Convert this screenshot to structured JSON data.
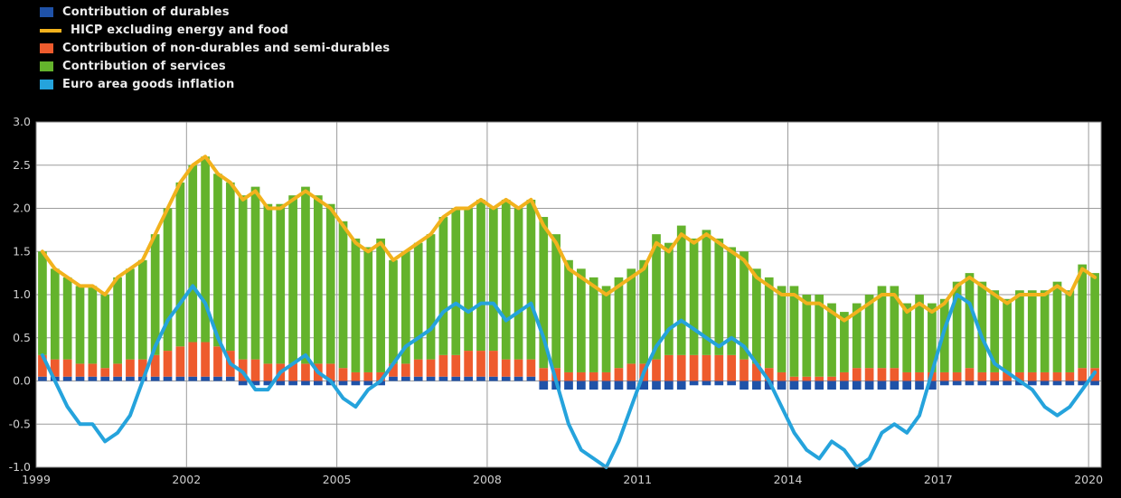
{
  "figure": {
    "background": "#000000",
    "plot_background": "#ffffff",
    "grid_color": "#9b9b9b",
    "axis_text_color": "#cfcfcf"
  },
  "legend": {
    "position": "top-left",
    "items": [
      {
        "label": "Contribution of durables",
        "color": "#1f52a8",
        "swatch": "square"
      },
      {
        "label": "HICP excluding energy and food",
        "color": "#f2b21d",
        "swatch": "line"
      },
      {
        "label": "Contribution of non-durables and semi-durables",
        "color": "#ee5b2d",
        "swatch": "square"
      },
      {
        "label": "Contribution of services",
        "color": "#64b32c",
        "swatch": "square"
      },
      {
        "label": "Euro area goods inflation",
        "color": "#25a3dc",
        "swatch": "square"
      }
    ]
  },
  "chart_data": {
    "type": "bar",
    "subtype": "stacked bars with line overlays",
    "title": "",
    "xlabel": "",
    "ylabel": "",
    "stacked": true,
    "grid": true,
    "legend_position": "top-left",
    "x0": 1999.0,
    "dx": 0.25,
    "xlim": [
      1999.0,
      2020.25
    ],
    "ylim": [
      -1.0,
      3.0
    ],
    "x_tick_values": [
      1999,
      2002,
      2005,
      2008,
      2011,
      2014,
      2017,
      2020
    ],
    "x_tick_labels": [
      "1999",
      "2002",
      "2005",
      "2008",
      "2011",
      "2014",
      "2017",
      "2020"
    ],
    "y_tick_values": [
      3.0,
      2.5,
      2.0,
      1.5,
      1.0,
      0.5,
      0.0,
      -0.5,
      -1.0
    ],
    "y_tick_labels": [
      "3.0",
      "2.5",
      "2.0",
      "1.5",
      "1.0",
      "0.5",
      "0.0",
      "-0.5",
      "-1.0"
    ],
    "series": [
      {
        "name": "Contribution of durables",
        "type": "bar",
        "color": "#1f52a8",
        "values": [
          0.05,
          0.05,
          0.05,
          0.05,
          0.05,
          0.05,
          0.05,
          0.05,
          0.05,
          0.05,
          0.05,
          0.05,
          0.05,
          0.05,
          0.05,
          0.05,
          -0.05,
          -0.05,
          -0.05,
          -0.05,
          -0.05,
          -0.05,
          -0.05,
          -0.05,
          -0.05,
          -0.05,
          -0.05,
          -0.05,
          0.05,
          0.05,
          0.05,
          0.05,
          0.05,
          0.05,
          0.05,
          0.05,
          0.05,
          0.05,
          0.05,
          0.05,
          -0.1,
          -0.1,
          -0.1,
          -0.1,
          -0.1,
          -0.1,
          -0.1,
          -0.1,
          -0.1,
          -0.1,
          -0.1,
          -0.1,
          -0.05,
          -0.05,
          -0.05,
          -0.05,
          -0.1,
          -0.1,
          -0.1,
          -0.1,
          -0.1,
          -0.1,
          -0.1,
          -0.1,
          -0.1,
          -0.1,
          -0.1,
          -0.1,
          -0.1,
          -0.1,
          -0.1,
          -0.1,
          -0.05,
          -0.05,
          -0.05,
          -0.05,
          -0.05,
          -0.05,
          -0.05,
          -0.05,
          -0.05,
          -0.05,
          -0.05,
          -0.05,
          -0.05
        ]
      },
      {
        "name": "Contribution of non-durables and semi-durables",
        "type": "bar",
        "color": "#ee5b2d",
        "values": [
          0.25,
          0.2,
          0.2,
          0.15,
          0.15,
          0.1,
          0.15,
          0.2,
          0.2,
          0.25,
          0.3,
          0.35,
          0.4,
          0.4,
          0.35,
          0.3,
          0.25,
          0.25,
          0.2,
          0.2,
          0.2,
          0.2,
          0.2,
          0.2,
          0.15,
          0.1,
          0.1,
          0.1,
          0.15,
          0.15,
          0.2,
          0.2,
          0.25,
          0.25,
          0.3,
          0.3,
          0.3,
          0.2,
          0.2,
          0.2,
          0.15,
          0.15,
          0.1,
          0.1,
          0.1,
          0.1,
          0.15,
          0.2,
          0.2,
          0.25,
          0.3,
          0.3,
          0.3,
          0.3,
          0.3,
          0.3,
          0.25,
          0.2,
          0.15,
          0.1,
          0.05,
          0.05,
          0.05,
          0.05,
          0.1,
          0.15,
          0.15,
          0.15,
          0.15,
          0.1,
          0.1,
          0.1,
          0.1,
          0.1,
          0.15,
          0.1,
          0.1,
          0.1,
          0.1,
          0.1,
          0.1,
          0.1,
          0.1,
          0.15,
          0.15
        ]
      },
      {
        "name": "Contribution of services",
        "type": "bar",
        "color": "#64b32c",
        "values": [
          1.2,
          1.05,
          0.95,
          0.9,
          0.9,
          0.85,
          1.0,
          1.05,
          1.15,
          1.4,
          1.65,
          1.9,
          2.05,
          2.15,
          2.0,
          1.95,
          1.9,
          2.0,
          1.85,
          1.85,
          1.95,
          2.05,
          1.95,
          1.85,
          1.7,
          1.55,
          1.45,
          1.55,
          1.2,
          1.3,
          1.35,
          1.45,
          1.6,
          1.7,
          1.65,
          1.75,
          1.65,
          1.85,
          1.75,
          1.85,
          1.75,
          1.55,
          1.3,
          1.2,
          1.1,
          1.0,
          1.05,
          1.1,
          1.2,
          1.45,
          1.3,
          1.5,
          1.35,
          1.45,
          1.35,
          1.25,
          1.25,
          1.1,
          1.05,
          1.0,
          1.05,
          0.95,
          0.95,
          0.85,
          0.7,
          0.75,
          0.85,
          0.95,
          0.95,
          0.8,
          0.9,
          0.8,
          0.85,
          1.05,
          1.1,
          1.05,
          0.95,
          0.85,
          0.95,
          0.95,
          0.95,
          1.05,
          0.95,
          1.2,
          1.1
        ]
      },
      {
        "name": "HICP excluding energy and food",
        "type": "line",
        "color": "#f2b21d",
        "values": [
          1.5,
          1.3,
          1.2,
          1.1,
          1.1,
          1.0,
          1.2,
          1.3,
          1.4,
          1.7,
          2.0,
          2.3,
          2.5,
          2.6,
          2.4,
          2.3,
          2.1,
          2.2,
          2.0,
          2.0,
          2.1,
          2.2,
          2.1,
          2.0,
          1.8,
          1.6,
          1.5,
          1.6,
          1.4,
          1.5,
          1.6,
          1.7,
          1.9,
          2.0,
          2.0,
          2.1,
          2.0,
          2.1,
          2.0,
          2.1,
          1.8,
          1.6,
          1.3,
          1.2,
          1.1,
          1.0,
          1.1,
          1.2,
          1.3,
          1.6,
          1.5,
          1.7,
          1.6,
          1.7,
          1.6,
          1.5,
          1.4,
          1.2,
          1.1,
          1.0,
          1.0,
          0.9,
          0.9,
          0.8,
          0.7,
          0.8,
          0.9,
          1.0,
          1.0,
          0.8,
          0.9,
          0.8,
          0.9,
          1.1,
          1.2,
          1.1,
          1.0,
          0.9,
          1.0,
          1.0,
          1.0,
          1.1,
          1.0,
          1.3,
          1.2
        ]
      },
      {
        "name": "Euro area goods inflation",
        "type": "line",
        "color": "#25a3dc",
        "values": [
          0.3,
          0.0,
          -0.3,
          -0.5,
          -0.5,
          -0.7,
          -0.6,
          -0.4,
          0.0,
          0.4,
          0.7,
          0.9,
          1.1,
          0.9,
          0.5,
          0.2,
          0.1,
          -0.1,
          -0.1,
          0.1,
          0.2,
          0.3,
          0.1,
          0.0,
          -0.2,
          -0.3,
          -0.1,
          0.0,
          0.2,
          0.4,
          0.5,
          0.6,
          0.8,
          0.9,
          0.8,
          0.9,
          0.9,
          0.7,
          0.8,
          0.9,
          0.5,
          0.0,
          -0.5,
          -0.8,
          -0.9,
          -1.0,
          -0.7,
          -0.3,
          0.1,
          0.4,
          0.6,
          0.7,
          0.6,
          0.5,
          0.4,
          0.5,
          0.4,
          0.2,
          0.0,
          -0.3,
          -0.6,
          -0.8,
          -0.9,
          -0.7,
          -0.8,
          -1.0,
          -0.9,
          -0.6,
          -0.5,
          -0.6,
          -0.4,
          0.1,
          0.6,
          1.0,
          0.9,
          0.5,
          0.2,
          0.1,
          0.0,
          -0.1,
          -0.3,
          -0.4,
          -0.3,
          -0.1,
          0.1
        ]
      }
    ]
  }
}
